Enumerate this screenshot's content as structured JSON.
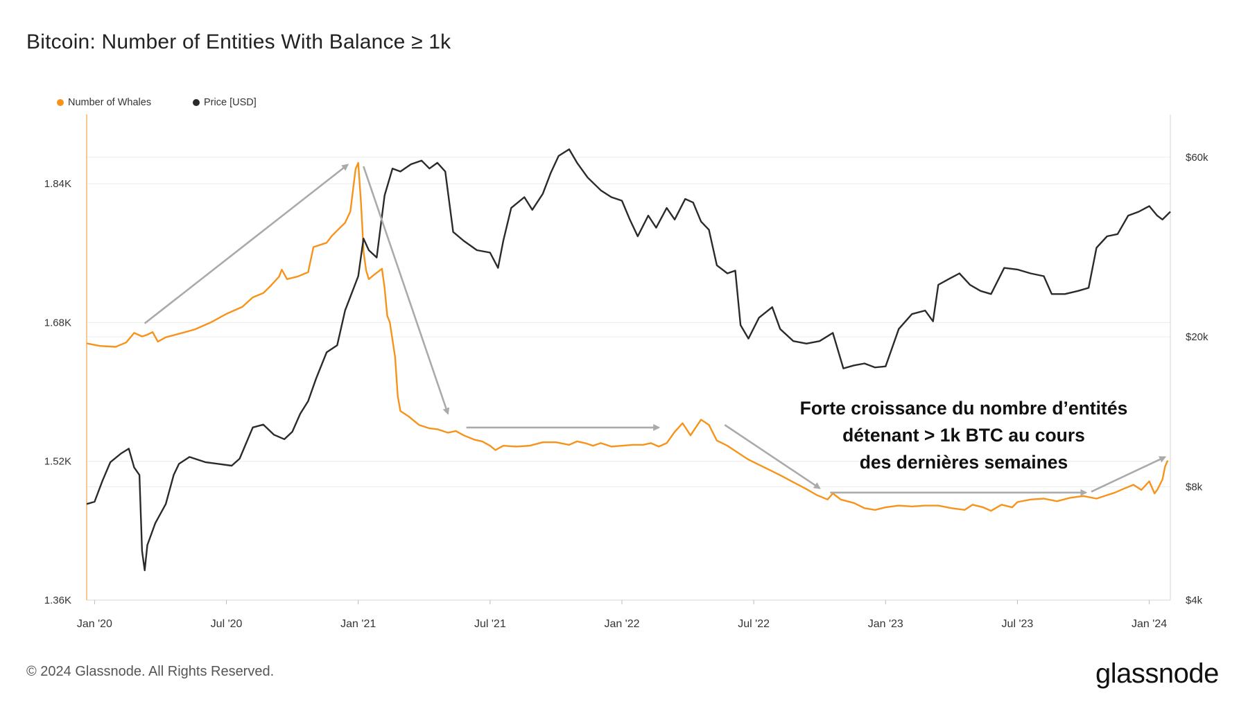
{
  "title": "Bitcoin: Number of Entities With Balance ≥ 1k",
  "legend": {
    "whales": "Number of Whales",
    "price": "Price [USD]"
  },
  "colors": {
    "whales": "#f7931a",
    "price": "#2a2a2a",
    "arrow": "#aaaaaa",
    "grid": "#ececec"
  },
  "annotation": {
    "line1": "Forte croissance du nombre d’entités",
    "line2": "détenant > 1k BTC au cours",
    "line3": "des dernières semaines"
  },
  "footer": {
    "copyright": "© 2024 Glassnode. All Rights Reserved.",
    "brand": "glassnode"
  },
  "chart_data": {
    "type": "line",
    "title": "Bitcoin: Number of Entities With Balance ≥ 1k",
    "x_range": [
      2019.97,
      2024.08
    ],
    "x_ticks": [
      {
        "label": "Jan '20",
        "t": 2020.0
      },
      {
        "label": "Jul '20",
        "t": 2020.5
      },
      {
        "label": "Jan '21",
        "t": 2021.0
      },
      {
        "label": "Jul '21",
        "t": 2021.5
      },
      {
        "label": "Jan '22",
        "t": 2022.0
      },
      {
        "label": "Jul '22",
        "t": 2022.5
      },
      {
        "label": "Jan '23",
        "t": 2023.0
      },
      {
        "label": "Jul '23",
        "t": 2023.5
      },
      {
        "label": "Jan '24",
        "t": 2024.0
      }
    ],
    "y_left": {
      "ylim": [
        1360,
        1920
      ],
      "ticks": [
        {
          "label": "1.36K",
          "v": 1360
        },
        {
          "label": "1.52K",
          "v": 1520
        },
        {
          "label": "1.68K",
          "v": 1680
        },
        {
          "label": "1.84K",
          "v": 1840
        }
      ]
    },
    "y_right": {
      "scale": "log",
      "ylim": [
        4000,
        78000
      ],
      "ticks": [
        {
          "label": "$4k",
          "v": 4000
        },
        {
          "label": "$8k",
          "v": 8000
        },
        {
          "label": "$20k",
          "v": 20000
        },
        {
          "label": "$60k",
          "v": 60000
        }
      ]
    },
    "series": [
      {
        "name": "Number of Whales",
        "axis": "left",
        "points": [
          [
            2019.97,
            1656
          ],
          [
            2020.02,
            1653
          ],
          [
            2020.08,
            1652
          ],
          [
            2020.12,
            1657
          ],
          [
            2020.15,
            1668
          ],
          [
            2020.18,
            1664
          ],
          [
            2020.2,
            1666
          ],
          [
            2020.22,
            1669
          ],
          [
            2020.24,
            1658
          ],
          [
            2020.27,
            1663
          ],
          [
            2020.32,
            1667
          ],
          [
            2020.38,
            1672
          ],
          [
            2020.44,
            1680
          ],
          [
            2020.5,
            1690
          ],
          [
            2020.56,
            1698
          ],
          [
            2020.6,
            1709
          ],
          [
            2020.64,
            1714
          ],
          [
            2020.67,
            1723
          ],
          [
            2020.7,
            1733
          ],
          [
            2020.71,
            1741
          ],
          [
            2020.73,
            1730
          ],
          [
            2020.77,
            1733
          ],
          [
            2020.81,
            1738
          ],
          [
            2020.83,
            1767
          ],
          [
            2020.86,
            1770
          ],
          [
            2020.88,
            1772
          ],
          [
            2020.9,
            1780
          ],
          [
            2020.92,
            1786
          ],
          [
            2020.95,
            1795
          ],
          [
            2020.97,
            1808
          ],
          [
            2020.99,
            1857
          ],
          [
            2021.0,
            1864
          ],
          [
            2021.01,
            1820
          ],
          [
            2021.015,
            1793
          ],
          [
            2021.02,
            1762
          ],
          [
            2021.03,
            1740
          ],
          [
            2021.04,
            1730
          ],
          [
            2021.06,
            1735
          ],
          [
            2021.09,
            1742
          ],
          [
            2021.1,
            1720
          ],
          [
            2021.11,
            1688
          ],
          [
            2021.12,
            1680
          ],
          [
            2021.14,
            1640
          ],
          [
            2021.15,
            1595
          ],
          [
            2021.16,
            1578
          ],
          [
            2021.19,
            1572
          ],
          [
            2021.23,
            1562
          ],
          [
            2021.27,
            1558
          ],
          [
            2021.3,
            1557
          ],
          [
            2021.34,
            1553
          ],
          [
            2021.37,
            1555
          ],
          [
            2021.4,
            1550
          ],
          [
            2021.44,
            1545
          ],
          [
            2021.47,
            1543
          ],
          [
            2021.5,
            1538
          ],
          [
            2021.52,
            1533
          ],
          [
            2021.55,
            1538
          ],
          [
            2021.6,
            1537
          ],
          [
            2021.65,
            1538
          ],
          [
            2021.7,
            1542
          ],
          [
            2021.75,
            1542
          ],
          [
            2021.8,
            1539
          ],
          [
            2021.83,
            1543
          ],
          [
            2021.86,
            1541
          ],
          [
            2021.89,
            1538
          ],
          [
            2021.92,
            1541
          ],
          [
            2021.96,
            1537
          ],
          [
            2022.0,
            1538
          ],
          [
            2022.04,
            1539
          ],
          [
            2022.08,
            1539
          ],
          [
            2022.11,
            1541
          ],
          [
            2022.14,
            1537
          ],
          [
            2022.17,
            1541
          ],
          [
            2022.2,
            1554
          ],
          [
            2022.23,
            1564
          ],
          [
            2022.26,
            1550
          ],
          [
            2022.3,
            1568
          ],
          [
            2022.33,
            1562
          ],
          [
            2022.36,
            1544
          ],
          [
            2022.4,
            1538
          ],
          [
            2022.44,
            1530
          ],
          [
            2022.48,
            1522
          ],
          [
            2022.52,
            1516
          ],
          [
            2022.56,
            1510
          ],
          [
            2022.6,
            1504
          ],
          [
            2022.65,
            1496
          ],
          [
            2022.7,
            1488
          ],
          [
            2022.74,
            1481
          ],
          [
            2022.78,
            1476
          ],
          [
            2022.8,
            1483
          ],
          [
            2022.83,
            1476
          ],
          [
            2022.88,
            1472
          ],
          [
            2022.92,
            1466
          ],
          [
            2022.96,
            1464
          ],
          [
            2023.0,
            1467
          ],
          [
            2023.05,
            1469
          ],
          [
            2023.1,
            1468
          ],
          [
            2023.15,
            1469
          ],
          [
            2023.2,
            1469
          ],
          [
            2023.25,
            1466
          ],
          [
            2023.3,
            1464
          ],
          [
            2023.33,
            1470
          ],
          [
            2023.37,
            1467
          ],
          [
            2023.4,
            1463
          ],
          [
            2023.44,
            1470
          ],
          [
            2023.48,
            1467
          ],
          [
            2023.5,
            1473
          ],
          [
            2023.55,
            1476
          ],
          [
            2023.6,
            1477
          ],
          [
            2023.65,
            1474
          ],
          [
            2023.7,
            1478
          ],
          [
            2023.75,
            1480
          ],
          [
            2023.8,
            1477
          ],
          [
            2023.84,
            1481
          ],
          [
            2023.87,
            1484
          ],
          [
            2023.9,
            1488
          ],
          [
            2023.94,
            1493
          ],
          [
            2023.97,
            1487
          ],
          [
            2024.0,
            1497
          ],
          [
            2024.02,
            1483
          ],
          [
            2024.03,
            1487
          ],
          [
            2024.05,
            1499
          ],
          [
            2024.06,
            1514
          ],
          [
            2024.07,
            1521
          ]
        ]
      },
      {
        "name": "Price [USD]",
        "axis": "right",
        "points": [
          [
            2019.97,
            7200
          ],
          [
            2020.0,
            7300
          ],
          [
            2020.03,
            8300
          ],
          [
            2020.06,
            9300
          ],
          [
            2020.1,
            9800
          ],
          [
            2020.13,
            10100
          ],
          [
            2020.15,
            9000
          ],
          [
            2020.17,
            8600
          ],
          [
            2020.18,
            5400
          ],
          [
            2020.19,
            4800
          ],
          [
            2020.2,
            5600
          ],
          [
            2020.23,
            6400
          ],
          [
            2020.27,
            7200
          ],
          [
            2020.3,
            8600
          ],
          [
            2020.32,
            9200
          ],
          [
            2020.36,
            9600
          ],
          [
            2020.42,
            9300
          ],
          [
            2020.47,
            9200
          ],
          [
            2020.52,
            9100
          ],
          [
            2020.55,
            9500
          ],
          [
            2020.6,
            11500
          ],
          [
            2020.64,
            11700
          ],
          [
            2020.68,
            11000
          ],
          [
            2020.72,
            10700
          ],
          [
            2020.75,
            11200
          ],
          [
            2020.78,
            12500
          ],
          [
            2020.81,
            13500
          ],
          [
            2020.84,
            15500
          ],
          [
            2020.88,
            18200
          ],
          [
            2020.92,
            19000
          ],
          [
            2020.95,
            23500
          ],
          [
            2021.0,
            29000
          ],
          [
            2021.02,
            36500
          ],
          [
            2021.04,
            34000
          ],
          [
            2021.07,
            32500
          ],
          [
            2021.1,
            47500
          ],
          [
            2021.13,
            56000
          ],
          [
            2021.16,
            55000
          ],
          [
            2021.2,
            57500
          ],
          [
            2021.24,
            58800
          ],
          [
            2021.27,
            56000
          ],
          [
            2021.3,
            58000
          ],
          [
            2021.33,
            55000
          ],
          [
            2021.36,
            38000
          ],
          [
            2021.4,
            36000
          ],
          [
            2021.45,
            34000
          ],
          [
            2021.5,
            33500
          ],
          [
            2021.53,
            30500
          ],
          [
            2021.55,
            36000
          ],
          [
            2021.58,
            44000
          ],
          [
            2021.63,
            47000
          ],
          [
            2021.66,
            43500
          ],
          [
            2021.7,
            48000
          ],
          [
            2021.73,
            54500
          ],
          [
            2021.76,
            60500
          ],
          [
            2021.8,
            63000
          ],
          [
            2021.83,
            58000
          ],
          [
            2021.87,
            53000
          ],
          [
            2021.92,
            49000
          ],
          [
            2021.96,
            47000
          ],
          [
            2022.0,
            46000
          ],
          [
            2022.03,
            41000
          ],
          [
            2022.06,
            37000
          ],
          [
            2022.1,
            42000
          ],
          [
            2022.13,
            39000
          ],
          [
            2022.17,
            44000
          ],
          [
            2022.2,
            41000
          ],
          [
            2022.24,
            46500
          ],
          [
            2022.27,
            45500
          ],
          [
            2022.3,
            40500
          ],
          [
            2022.33,
            38500
          ],
          [
            2022.36,
            31000
          ],
          [
            2022.4,
            29500
          ],
          [
            2022.43,
            30000
          ],
          [
            2022.45,
            21500
          ],
          [
            2022.48,
            19800
          ],
          [
            2022.52,
            22500
          ],
          [
            2022.57,
            24000
          ],
          [
            2022.6,
            21000
          ],
          [
            2022.65,
            19500
          ],
          [
            2022.7,
            19200
          ],
          [
            2022.75,
            19500
          ],
          [
            2022.8,
            20500
          ],
          [
            2022.84,
            16500
          ],
          [
            2022.88,
            16800
          ],
          [
            2022.92,
            17000
          ],
          [
            2022.96,
            16600
          ],
          [
            2023.0,
            16700
          ],
          [
            2023.05,
            21000
          ],
          [
            2023.1,
            23000
          ],
          [
            2023.15,
            23500
          ],
          [
            2023.18,
            22000
          ],
          [
            2023.2,
            27500
          ],
          [
            2023.24,
            28500
          ],
          [
            2023.28,
            29500
          ],
          [
            2023.32,
            27500
          ],
          [
            2023.36,
            26500
          ],
          [
            2023.4,
            26000
          ],
          [
            2023.45,
            30500
          ],
          [
            2023.5,
            30200
          ],
          [
            2023.55,
            29500
          ],
          [
            2023.6,
            29000
          ],
          [
            2023.63,
            26000
          ],
          [
            2023.68,
            26000
          ],
          [
            2023.73,
            26500
          ],
          [
            2023.77,
            27000
          ],
          [
            2023.8,
            34500
          ],
          [
            2023.84,
            37000
          ],
          [
            2023.88,
            37500
          ],
          [
            2023.92,
            42000
          ],
          [
            2023.96,
            43000
          ],
          [
            2024.0,
            44500
          ],
          [
            2024.03,
            42000
          ],
          [
            2024.05,
            41000
          ],
          [
            2024.08,
            43000
          ]
        ]
      }
    ]
  }
}
